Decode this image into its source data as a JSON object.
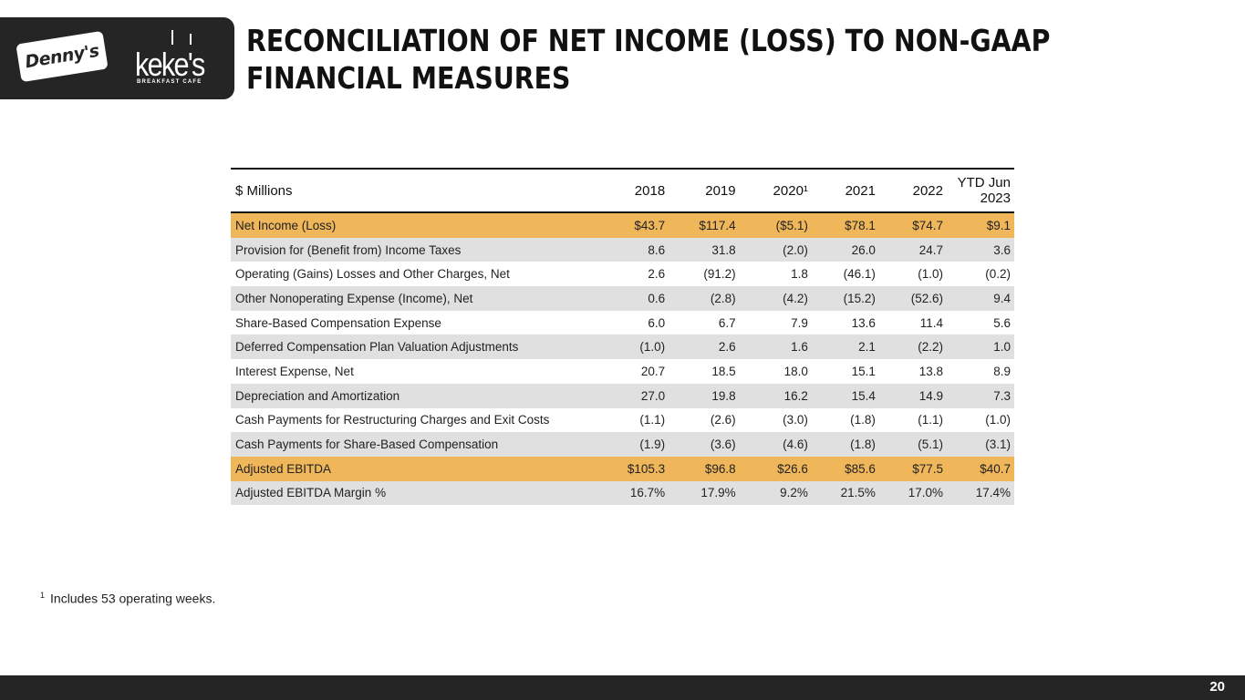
{
  "logos": {
    "dennys": "Denny's",
    "kekes": "keke's",
    "kekes_sub": "BREAKFAST CAFE"
  },
  "title": "RECONCILIATION OF NET INCOME (LOSS) TO NON-GAAP FINANCIAL MEASURES",
  "table": {
    "headers": [
      "$ Millions",
      "2018",
      "2019",
      "2020¹",
      "2021",
      "2022",
      "YTD Jun 2023"
    ],
    "rows": [
      {
        "label": "Net Income (Loss)",
        "values": [
          "$43.7",
          "$117.4",
          "($5.1)",
          "$78.1",
          "$74.7",
          "$9.1"
        ],
        "highlight": true
      },
      {
        "label": "Provision for (Benefit from) Income Taxes",
        "values": [
          "8.6",
          "31.8",
          "(2.0)",
          "26.0",
          "24.7",
          "3.6"
        ],
        "highlight": false
      },
      {
        "label": "Operating (Gains) Losses and Other Charges, Net",
        "values": [
          "2.6",
          "(91.2)",
          "1.8",
          "(46.1)",
          "(1.0)",
          "(0.2)"
        ],
        "highlight": false
      },
      {
        "label": "Other Nonoperating Expense (Income), Net",
        "values": [
          "0.6",
          "(2.8)",
          "(4.2)",
          "(15.2)",
          "(52.6)",
          "9.4"
        ],
        "highlight": false
      },
      {
        "label": "Share-Based Compensation Expense",
        "values": [
          "6.0",
          "6.7",
          "7.9",
          "13.6",
          "11.4",
          "5.6"
        ],
        "highlight": false
      },
      {
        "label": "Deferred Compensation Plan Valuation Adjustments",
        "values": [
          "(1.0)",
          "2.6",
          "1.6",
          "2.1",
          "(2.2)",
          "1.0"
        ],
        "highlight": false
      },
      {
        "label": "Interest Expense, Net",
        "values": [
          "20.7",
          "18.5",
          "18.0",
          "15.1",
          "13.8",
          "8.9"
        ],
        "highlight": false
      },
      {
        "label": "Depreciation and Amortization",
        "values": [
          "27.0",
          "19.8",
          "16.2",
          "15.4",
          "14.9",
          "7.3"
        ],
        "highlight": false
      },
      {
        "label": "Cash Payments for Restructuring Charges and Exit Costs",
        "values": [
          "(1.1)",
          "(2.6)",
          "(3.0)",
          "(1.8)",
          "(1.1)",
          "(1.0)"
        ],
        "highlight": false
      },
      {
        "label": "Cash Payments for Share-Based Compensation",
        "values": [
          "(1.9)",
          "(3.6)",
          "(4.6)",
          "(1.8)",
          "(5.1)",
          "(3.1)"
        ],
        "highlight": false
      },
      {
        "label": "Adjusted EBITDA",
        "values": [
          "$105.3",
          "$96.8",
          "$26.6",
          "$85.6",
          "$77.5",
          "$40.7"
        ],
        "highlight": true
      },
      {
        "label": "Adjusted EBITDA Margin %",
        "values": [
          "16.7%",
          "17.9%",
          "9.2%",
          "21.5%",
          "17.0%",
          "17.4%"
        ],
        "highlight": false
      }
    ]
  },
  "footnote": {
    "marker": "1",
    "text": "Includes 53 operating weeks."
  },
  "page_number": "20",
  "colors": {
    "highlight": "#f0b65a",
    "stripe": "#e0e0e0",
    "dark": "#252525"
  }
}
